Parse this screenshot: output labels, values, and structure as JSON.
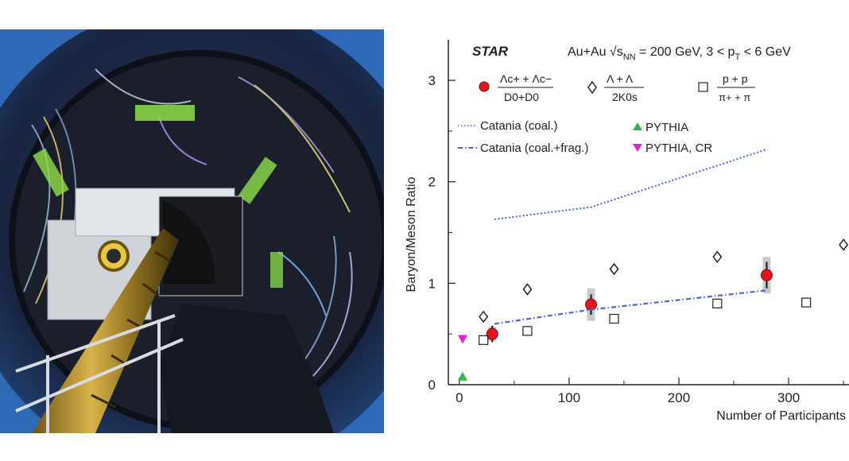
{
  "chart_data": {
    "type": "scatter",
    "experiment": "STAR",
    "collision": "Au+Au √s",
    "collision_sub": "NN",
    "collision_rest": " = 200 GeV, 3 < p",
    "pt_sub": "T",
    "pt_rest": " < 6 GeV",
    "xlabel": "Number of Participants",
    "ylabel": "Baryon/Meson Ratio",
    "xlim": [
      -10,
      355
    ],
    "ylim": [
      0,
      3.4
    ],
    "xticks": [
      "0",
      "100",
      "200",
      "300"
    ],
    "xtick_values": [
      0,
      100,
      200,
      300
    ],
    "yticks": [
      "0",
      "1",
      "2",
      "3"
    ],
    "ytick_values": [
      0,
      1,
      2,
      3
    ],
    "legend": {
      "lambda_c_num": "Λc+ + Λc−",
      "lambda_c_den": "D0+D0",
      "lambda_num": "Λ + Λ",
      "lambda_den": "2K0s",
      "proton_num": "p + p",
      "proton_den": "π+ + π",
      "catania_coal": "Catania (coal.)",
      "catania_coal_frag": "Catania (coal.+frag.)",
      "pythia": "PYTHIA",
      "pythia_cr": "PYTHIA, CR"
    },
    "series": [
      {
        "name": "Λc/D0",
        "marker": "filled-circle",
        "color": "#e8141b",
        "x": [
          30,
          120,
          280
        ],
        "y": [
          0.5,
          0.79,
          1.08
        ],
        "stat_err": [
          0.08,
          0.1,
          0.13
        ],
        "sys_err": [
          0.07,
          0.16,
          0.18
        ]
      },
      {
        "name": "Λ/2K0s",
        "marker": "open-diamond",
        "color": "#222222",
        "x": [
          22,
          62,
          141,
          235,
          350
        ],
        "y": [
          0.67,
          0.94,
          1.14,
          1.26,
          1.38
        ]
      },
      {
        "name": "p/π",
        "marker": "open-square",
        "color": "#222222",
        "x": [
          22,
          62,
          141,
          235,
          316
        ],
        "y": [
          0.44,
          0.53,
          0.65,
          0.8,
          0.81
        ]
      },
      {
        "name": "Catania (coal.)",
        "style": "dotted-line",
        "color": "#4a63e0",
        "x": [
          32,
          120,
          280
        ],
        "y": [
          1.63,
          1.75,
          2.32
        ]
      },
      {
        "name": "Catania (coal.+frag.)",
        "style": "dash-dot-line",
        "color": "#4a63e0",
        "x": [
          32,
          120,
          280
        ],
        "y": [
          0.6,
          0.74,
          0.93
        ]
      },
      {
        "name": "PYTHIA",
        "marker": "filled-triangle-up",
        "color": "#2bb84a",
        "x": [
          3
        ],
        "y": [
          0.08
        ]
      },
      {
        "name": "PYTHIA, CR",
        "marker": "filled-triangle-down",
        "color": "#e21fd3",
        "x": [
          3
        ],
        "y": [
          0.45
        ]
      }
    ]
  }
}
